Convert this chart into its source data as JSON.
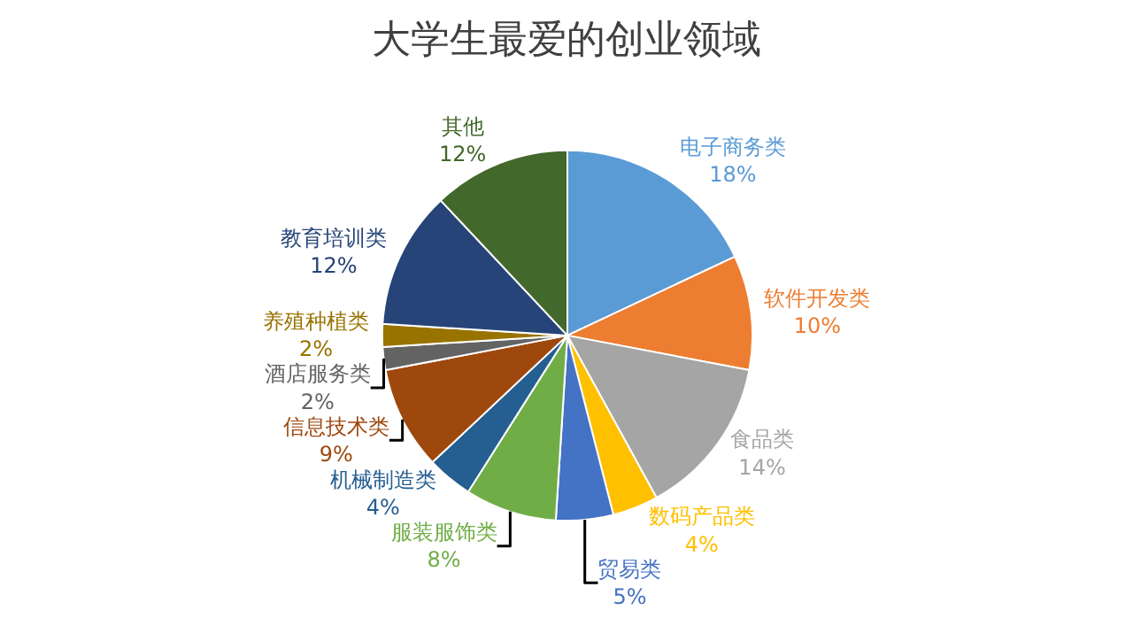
{
  "chart_data": {
    "type": "pie",
    "title": "大学生最爱的创业领域",
    "categories": [
      "电子商务类",
      "软件开发类",
      "食品类",
      "数码产品类",
      "贸易类",
      "服装服饰类",
      "机械制造类",
      "信息技术类",
      "酒店服务类",
      "养殖种植类",
      "教育培训类",
      "其他"
    ],
    "values": [
      18,
      10,
      14,
      4,
      5,
      8,
      4,
      9,
      2,
      2,
      12,
      12
    ],
    "value_labels": [
      "18%",
      "10%",
      "14%",
      "4%",
      "5%",
      "8%",
      "4%",
      "9%",
      "2%",
      "2%",
      "12%",
      "12%"
    ],
    "colors": [
      "#5b9bd5",
      "#ed7d31",
      "#a5a5a5",
      "#ffc000",
      "#4472c4",
      "#70ad47",
      "#255e91",
      "#9e480e",
      "#636363",
      "#997300",
      "#264478",
      "#43682b"
    ],
    "legend": false
  }
}
